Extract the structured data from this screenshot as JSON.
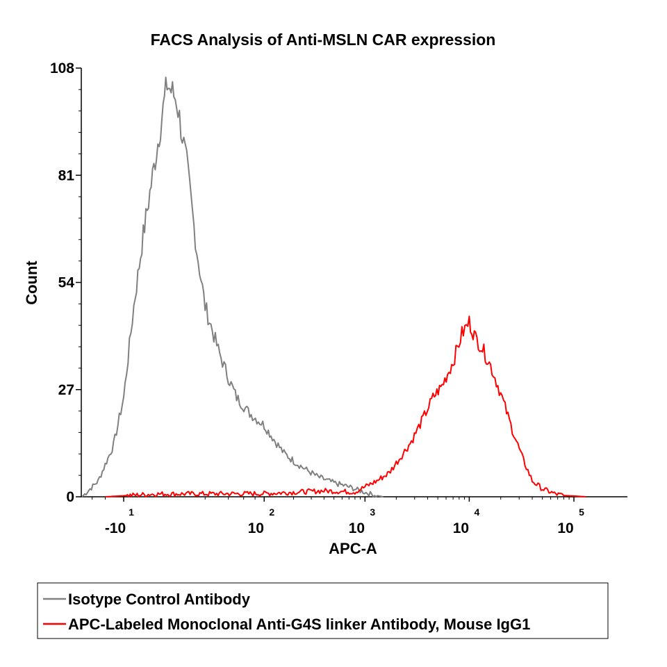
{
  "chart_data": {
    "type": "line",
    "title": "FACS Analysis of Anti-MSLN CAR expression",
    "xlabel": "APC-A",
    "ylabel": "Count",
    "ylim": [
      0,
      108
    ],
    "y_ticks": [
      "0",
      "27",
      "54",
      "81",
      "108"
    ],
    "x_scale": "biexponential",
    "x_ticks": [
      {
        "value": -10,
        "base": "-10",
        "exp": "1"
      },
      {
        "value": 100,
        "base": "10",
        "exp": "2"
      },
      {
        "value": 1000,
        "base": "10",
        "exp": "3"
      },
      {
        "value": 10000,
        "base": "10",
        "exp": "4"
      },
      {
        "value": 100000,
        "base": "10",
        "exp": "5"
      }
    ],
    "grid": false,
    "legend_position": "bottom",
    "series": [
      {
        "name": "Isotype Control Antibody",
        "color": "#808080",
        "x": [
          -40,
          -25,
          -15,
          -10,
          -6,
          -3,
          0,
          3,
          6,
          10,
          15,
          20,
          30,
          40,
          50,
          70,
          100,
          130,
          160,
          200,
          260,
          350,
          500,
          700,
          900,
          1200,
          1500
        ],
        "y": [
          0,
          4,
          13,
          25,
          48,
          66,
          85,
          104,
          100,
          84,
          62,
          48,
          37,
          30,
          25,
          21,
          18,
          14,
          11,
          9,
          7,
          5,
          3.5,
          2.5,
          1.5,
          0.5,
          0
        ]
      },
      {
        "name": "APC-Labeled Monoclonal Anti-G4S linker Antibody, Mouse IgG1",
        "color": "#ff0000",
        "x": [
          -20,
          0,
          100,
          400,
          800,
          1000,
          1300,
          1700,
          2200,
          2800,
          3500,
          4500,
          5500,
          7000,
          8500,
          10000,
          11500,
          13000,
          16000,
          20000,
          25000,
          32000,
          40000,
          50000,
          65000,
          80000,
          100000,
          130000
        ],
        "y": [
          0,
          0.7,
          0.8,
          1.5,
          1.2,
          2.5,
          4,
          6,
          10,
          14,
          19,
          25,
          28,
          34,
          41,
          44,
          40,
          38,
          33,
          26,
          18,
          10,
          4,
          2,
          0.8,
          0.3,
          0.2,
          0
        ]
      }
    ]
  }
}
